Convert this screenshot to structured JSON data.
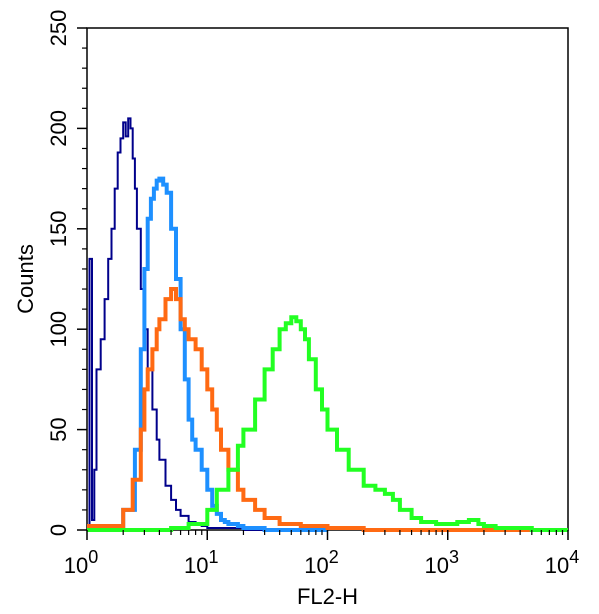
{
  "chart_data": {
    "type": "line",
    "title": "",
    "xlabel": "FL2-H",
    "ylabel": "Counts",
    "x_scale": "log",
    "xlim": [
      1,
      10000
    ],
    "ylim": [
      0,
      250
    ],
    "grid": false,
    "x_ticks": [
      {
        "value": 1,
        "base": "10",
        "exp": "0"
      },
      {
        "value": 10,
        "base": "10",
        "exp": "1"
      },
      {
        "value": 100,
        "base": "10",
        "exp": "2"
      },
      {
        "value": 1000,
        "base": "10",
        "exp": "3"
      },
      {
        "value": 10000,
        "base": "10",
        "exp": "4"
      }
    ],
    "y_ticks": [
      "0",
      "50",
      "100",
      "150",
      "200",
      "250"
    ],
    "series": [
      {
        "color": "#00008b",
        "line_width": 2,
        "x": [
          1,
          1.05,
          1.1,
          1.15,
          1.2,
          1.3,
          1.4,
          1.5,
          1.6,
          1.7,
          1.8,
          1.9,
          2.0,
          2.1,
          2.2,
          2.3,
          2.4,
          2.5,
          2.6,
          2.8,
          3.0,
          3.2,
          3.5,
          3.8,
          4.0,
          4.5,
          5.0,
          5.5,
          6.0,
          7.0,
          8.0,
          9.0,
          10,
          12,
          15,
          20,
          30,
          50,
          80
        ],
        "y": [
          0,
          135,
          5,
          30,
          80,
          95,
          115,
          135,
          150,
          170,
          188,
          195,
          203,
          196,
          205,
          200,
          185,
          170,
          150,
          120,
          100,
          80,
          60,
          45,
          35,
          22,
          15,
          10,
          7,
          4,
          3,
          2,
          1,
          1,
          1,
          0,
          0,
          0,
          0
        ]
      },
      {
        "color": "#1e90ff",
        "line_width": 4,
        "x": [
          1,
          1.5,
          2.0,
          2.5,
          2.8,
          3.0,
          3.2,
          3.4,
          3.6,
          3.8,
          4.0,
          4.3,
          4.6,
          5.0,
          5.5,
          6.0,
          6.5,
          7.0,
          7.5,
          8.0,
          9.0,
          10,
          11,
          12,
          13,
          14,
          15,
          16,
          18,
          20,
          25,
          30,
          40,
          60,
          100
        ],
        "y": [
          0,
          2,
          10,
          40,
          90,
          130,
          155,
          165,
          170,
          174,
          175,
          172,
          168,
          150,
          125,
          100,
          75,
          55,
          45,
          40,
          30,
          20,
          12,
          8,
          5,
          4,
          3,
          3,
          2,
          1,
          1,
          0,
          0,
          0,
          0
        ]
      },
      {
        "color": "#ff6a13",
        "line_width": 4,
        "x": [
          1,
          1.2,
          1.5,
          2.0,
          2.4,
          2.8,
          3.0,
          3.2,
          3.5,
          3.8,
          4.0,
          4.5,
          5.0,
          5.5,
          6.0,
          6.5,
          7.0,
          8.0,
          9.0,
          10,
          11,
          12,
          13,
          15,
          18,
          20,
          25,
          30,
          40,
          60,
          100,
          200,
          1000,
          10000
        ],
        "y": [
          2,
          2,
          2,
          10,
          25,
          50,
          70,
          80,
          90,
          100,
          105,
          115,
          120,
          115,
          105,
          100,
          95,
          90,
          80,
          70,
          60,
          50,
          40,
          30,
          20,
          15,
          10,
          6,
          3,
          2,
          1,
          0,
          0,
          0
        ]
      },
      {
        "color": "#22ff22",
        "line_width": 4,
        "x": [
          1,
          3,
          5,
          7,
          10,
          12,
          15,
          18,
          20,
          25,
          30,
          35,
          40,
          45,
          50,
          55,
          60,
          65,
          70,
          80,
          90,
          100,
          120,
          150,
          200,
          250,
          300,
          350,
          400,
          500,
          600,
          800,
          1000,
          1200,
          1500,
          1800,
          2000,
          2500,
          3000,
          5000,
          10000
        ],
        "y": [
          0,
          0,
          1,
          3,
          10,
          20,
          30,
          42,
          50,
          65,
          80,
          90,
          100,
          103,
          106,
          104,
          100,
          95,
          85,
          70,
          60,
          50,
          40,
          30,
          22,
          20,
          18,
          15,
          10,
          6,
          4,
          3,
          3,
          4,
          5,
          3,
          2,
          1,
          1,
          0,
          0
        ]
      }
    ]
  }
}
